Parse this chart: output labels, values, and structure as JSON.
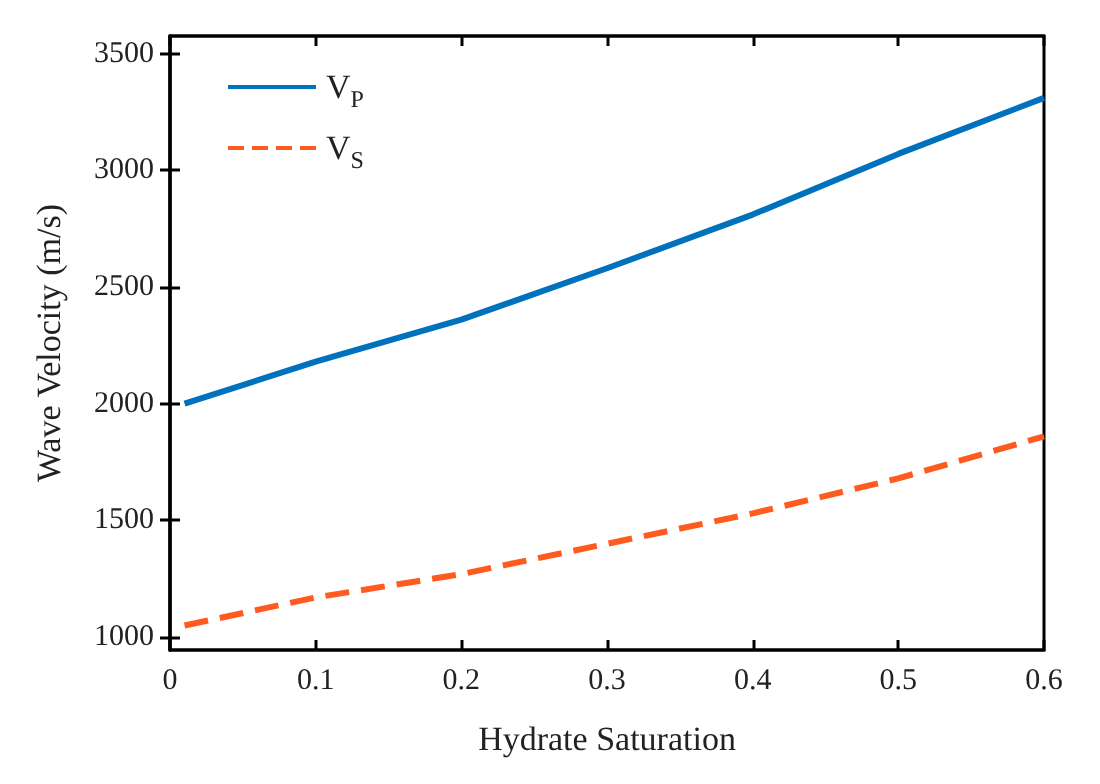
{
  "chart_data": {
    "type": "line",
    "xlabel": "Hydrate Saturation",
    "ylabel": "Wave Velocity (m/s)",
    "x": [
      0.01,
      0.1,
      0.2,
      0.3,
      0.4,
      0.5,
      0.6
    ],
    "series": [
      {
        "name": "V$_{P}$",
        "color": "#0072bd",
        "line_style": "solid",
        "values": [
          2000,
          2180,
          2360,
          2580,
          2810,
          3070,
          3310
        ]
      },
      {
        "name": "V$_{S}$",
        "color": "#ff5a1f",
        "line_style": "dashed",
        "values": [
          1050,
          1170,
          1270,
          1400,
          1530,
          1680,
          1860
        ]
      }
    ],
    "xlim": [
      0,
      0.6
    ],
    "xticks": [
      0,
      0.1,
      0.2,
      0.3,
      0.4,
      0.5,
      0.6
    ],
    "ylim": [
      945,
      3575
    ],
    "yticks": [
      1000,
      1500,
      2000,
      2500,
      3000,
      3500
    ],
    "grid": false,
    "legend": "top left",
    "marker": "none"
  }
}
